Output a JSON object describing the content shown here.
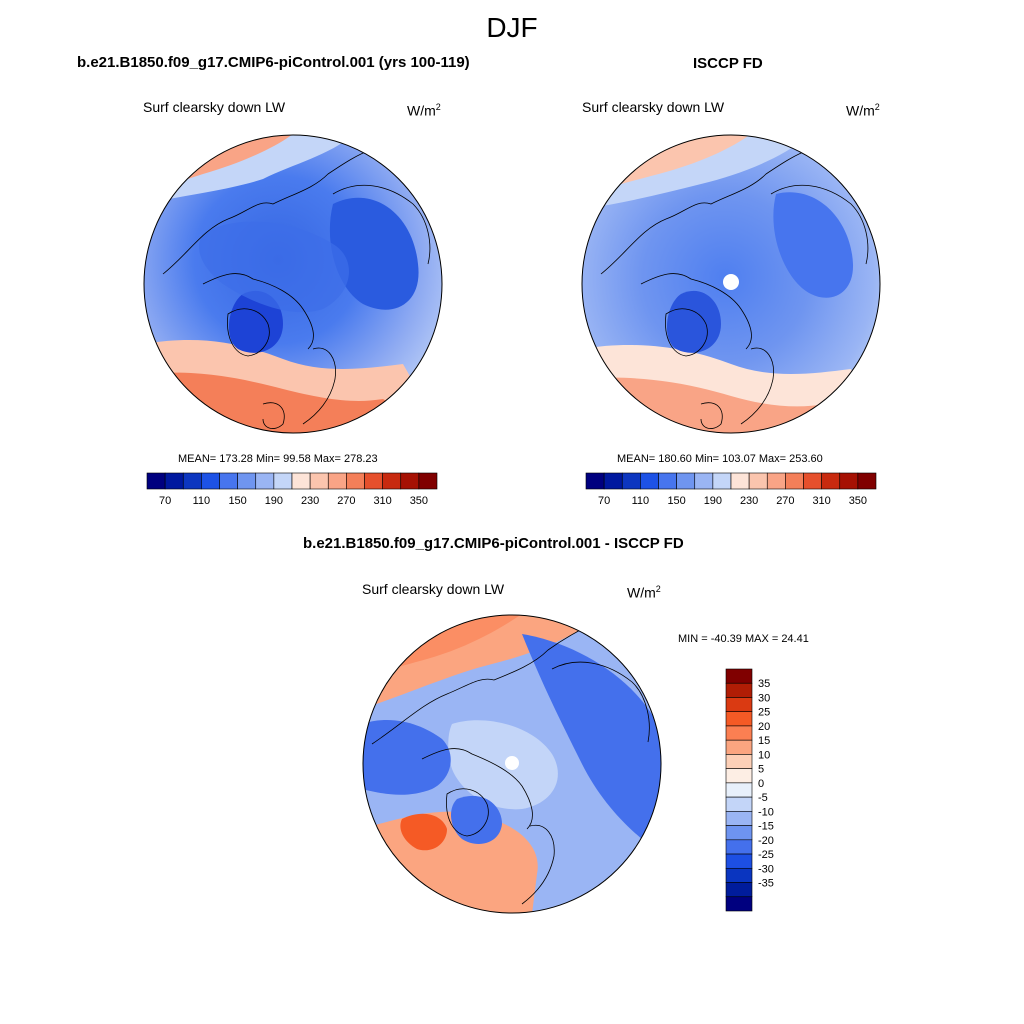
{
  "figure": {
    "season": "DJF"
  },
  "panels": {
    "model": {
      "title": "b.e21.B1850.f09_g17.CMIP6-piControl.001 (yrs 100-119)",
      "field": "Surf clearsky down LW",
      "units": "W/m",
      "units_exp": "2",
      "stats": "MEAN= 173.28  Min=  99.58  Max= 278.23"
    },
    "obs": {
      "title": "ISCCP FD",
      "field": "Surf clearsky down LW",
      "units": "W/m",
      "units_exp": "2",
      "stats": "MEAN= 180.60  Min= 103.07  Max= 253.60"
    },
    "diff": {
      "title": "b.e21.B1850.f09_g17.CMIP6-piControl.001 - ISCCP FD",
      "field": "Surf clearsky down LW",
      "units": "W/m",
      "units_exp": "2",
      "stats": "MIN = -40.39 MAX =  24.41"
    }
  },
  "chart_data": [
    {
      "type": "heatmap",
      "projection": "polar stereographic (North Pole)",
      "title": "b.e21.B1850.f09_g17.CMIP6-piControl.001 (yrs 100-119)",
      "field": "Surf clearsky down LW",
      "units": "W/m2",
      "mean": 173.28,
      "min": 99.58,
      "max": 278.23,
      "colorbar_levels": [
        70,
        90,
        110,
        130,
        150,
        170,
        190,
        210,
        230,
        250,
        270,
        290,
        310,
        330,
        350
      ],
      "colorbar_labels": [
        "70",
        "110",
        "150",
        "190",
        "230",
        "270",
        "310",
        "350"
      ],
      "colorbar_orientation": "horizontal"
    },
    {
      "type": "heatmap",
      "projection": "polar stereographic (North Pole)",
      "title": "ISCCP FD",
      "field": "Surf clearsky down LW",
      "units": "W/m2",
      "mean": 180.6,
      "min": 103.07,
      "max": 253.6,
      "colorbar_levels": [
        70,
        90,
        110,
        130,
        150,
        170,
        190,
        210,
        230,
        250,
        270,
        290,
        310,
        330,
        350
      ],
      "colorbar_labels": [
        "70",
        "110",
        "150",
        "190",
        "230",
        "270",
        "310",
        "350"
      ],
      "colorbar_orientation": "horizontal"
    },
    {
      "type": "heatmap",
      "projection": "polar stereographic (North Pole)",
      "title": "b.e21.B1850.f09_g17.CMIP6-piControl.001 - ISCCP FD",
      "field": "Surf clearsky down LW",
      "units": "W/m2",
      "min": -40.39,
      "max": 24.41,
      "colorbar_levels": [
        35,
        30,
        25,
        20,
        15,
        10,
        5,
        0,
        -5,
        -10,
        -15,
        -20,
        -25,
        -30,
        -35
      ],
      "colorbar_labels": [
        "35",
        "30",
        "25",
        "20",
        "15",
        "10",
        "5",
        "0",
        "-5",
        "-10",
        "-15",
        "-20",
        "-25",
        "-30",
        "-35"
      ],
      "colorbar_orientation": "vertical"
    }
  ],
  "colors": {
    "abs_scale": [
      "#00007f",
      "#00189f",
      "#0d36c0",
      "#1d52e6",
      "#4775ee",
      "#6f95f0",
      "#9ab5f4",
      "#c4d6f8",
      "#fde4d8",
      "#fbc5ae",
      "#f9a486",
      "#f47f59",
      "#e6502c",
      "#c82a0f",
      "#a61103",
      "#800000"
    ],
    "diff_scale": [
      "#800000",
      "#b01d05",
      "#da3a12",
      "#f55a25",
      "#fb7f52",
      "#fba580",
      "#fdd0b7",
      "#fdeee4",
      "#e8f0fb",
      "#c3d5f8",
      "#9ab5f4",
      "#6e94f0",
      "#4470ec",
      "#1d4fe3",
      "#0a35c0",
      "#001c9c",
      "#00007f"
    ],
    "land_outline": "#000000"
  }
}
